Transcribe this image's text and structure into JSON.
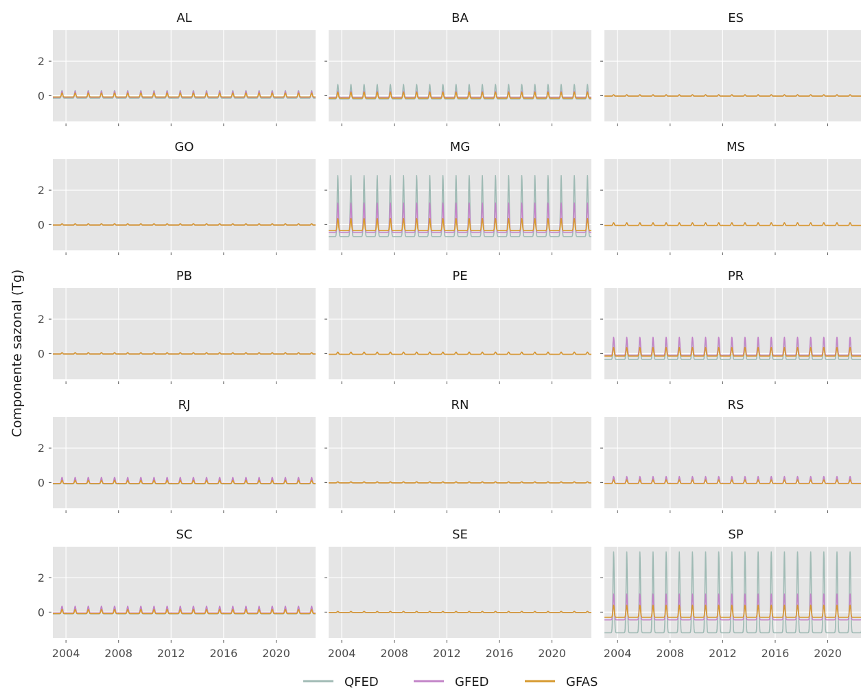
{
  "chart_data": {
    "type": "line",
    "ylabel": "Componente sazonal (Tg)",
    "xlim": [
      2003.0,
      2023.0
    ],
    "ylim": [
      -1.5,
      3.8
    ],
    "xticks": [
      2004,
      2008,
      2012,
      2016,
      2020
    ],
    "xtick_labels": [
      "2004",
      "2008",
      "2012",
      "2016",
      "2020"
    ],
    "yticks": [
      0,
      2
    ],
    "ytick_labels": [
      "0",
      "2"
    ],
    "grid": true,
    "legend_position": "bottom-center",
    "series_styles": [
      {
        "name": "QFED",
        "color": "#a0bbb5"
      },
      {
        "name": "GFED",
        "color": "#c384c8"
      },
      {
        "name": "GFAS",
        "color": "#d79a30"
      }
    ],
    "period_years": 1.0,
    "peak_offset_year": 0.7,
    "panels": [
      {
        "title": "AL",
        "amp": {
          "QFED": [
            0.3,
            -0.15
          ],
          "GFED": [
            0.25,
            -0.1
          ],
          "GFAS": [
            0.15,
            -0.08
          ]
        }
      },
      {
        "title": "BA",
        "amp": {
          "QFED": [
            0.65,
            -0.2
          ],
          "GFED": [
            0.25,
            -0.1
          ],
          "GFAS": [
            0.2,
            -0.15
          ]
        }
      },
      {
        "title": "ES",
        "amp": {
          "QFED": [
            0.05,
            -0.03
          ],
          "GFED": [
            0.05,
            -0.03
          ],
          "GFAS": [
            0.05,
            -0.03
          ]
        }
      },
      {
        "title": "GO",
        "amp": {
          "QFED": [
            0.05,
            -0.03
          ],
          "GFED": [
            0.05,
            -0.03
          ],
          "GFAS": [
            0.05,
            -0.03
          ]
        }
      },
      {
        "title": "MG",
        "amp": {
          "QFED": [
            2.85,
            -0.7
          ],
          "GFED": [
            1.25,
            -0.45
          ],
          "GFAS": [
            0.35,
            -0.35
          ]
        }
      },
      {
        "title": "MS",
        "amp": {
          "QFED": [
            0.1,
            -0.05
          ],
          "GFED": [
            0.1,
            -0.05
          ],
          "GFAS": [
            0.1,
            -0.05
          ]
        }
      },
      {
        "title": "PB",
        "amp": {
          "QFED": [
            0.05,
            -0.03
          ],
          "GFED": [
            0.05,
            -0.03
          ],
          "GFAS": [
            0.05,
            -0.03
          ]
        }
      },
      {
        "title": "PE",
        "amp": {
          "QFED": [
            0.08,
            -0.04
          ],
          "GFED": [
            0.08,
            -0.04
          ],
          "GFAS": [
            0.08,
            -0.04
          ]
        }
      },
      {
        "title": "PR",
        "amp": {
          "QFED": [
            0.9,
            -0.35
          ],
          "GFED": [
            0.95,
            -0.1
          ],
          "GFAS": [
            0.35,
            -0.15
          ]
        }
      },
      {
        "title": "RJ",
        "amp": {
          "QFED": [
            0.2,
            -0.08
          ],
          "GFED": [
            0.3,
            -0.05
          ],
          "GFAS": [
            0.12,
            -0.06
          ]
        }
      },
      {
        "title": "RN",
        "amp": {
          "QFED": [
            0.04,
            -0.02
          ],
          "GFED": [
            0.04,
            -0.02
          ],
          "GFAS": [
            0.04,
            -0.02
          ]
        }
      },
      {
        "title": "RS",
        "amp": {
          "QFED": [
            0.3,
            -0.05
          ],
          "GFED": [
            0.35,
            -0.05
          ],
          "GFAS": [
            0.15,
            -0.06
          ]
        }
      },
      {
        "title": "SC",
        "amp": {
          "QFED": [
            0.3,
            -0.1
          ],
          "GFED": [
            0.35,
            -0.05
          ],
          "GFAS": [
            0.15,
            -0.08
          ]
        }
      },
      {
        "title": "SE",
        "amp": {
          "QFED": [
            0.04,
            -0.02
          ],
          "GFED": [
            0.04,
            -0.02
          ],
          "GFAS": [
            0.04,
            -0.02
          ]
        }
      },
      {
        "title": "SP",
        "amp": {
          "QFED": [
            3.5,
            -1.2
          ],
          "GFED": [
            1.05,
            -0.45
          ],
          "GFAS": [
            0.4,
            -0.3
          ]
        }
      }
    ]
  }
}
